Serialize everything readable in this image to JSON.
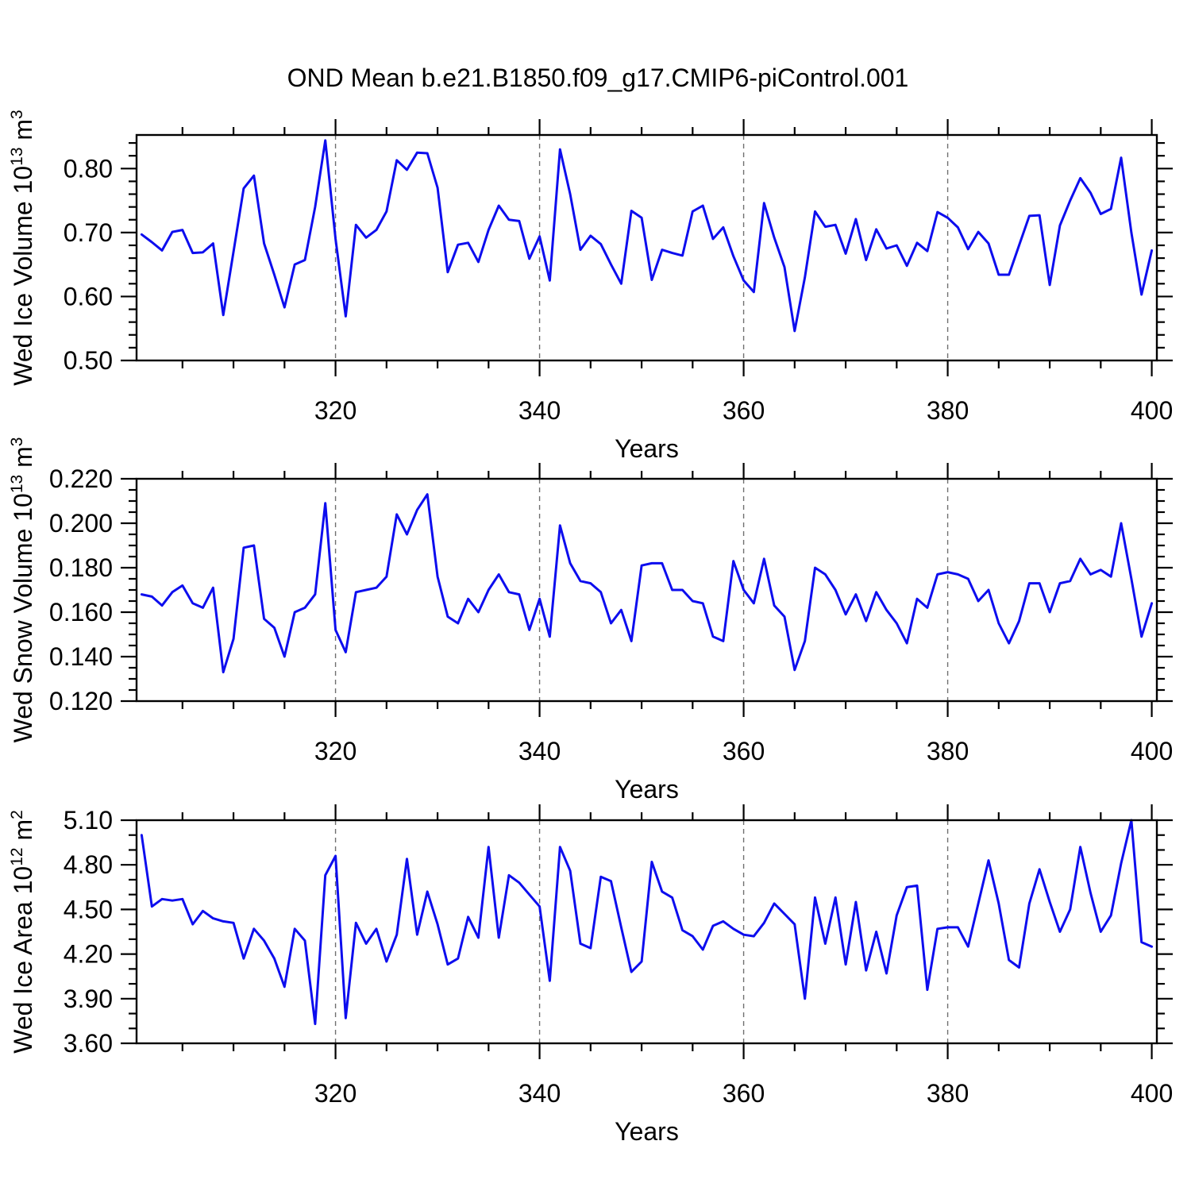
{
  "title": "OND Mean b.e21.B1850.f09_g17.CMIP6-piControl.001",
  "style": {
    "line_color": "#0d0dee",
    "grid_color": "#707070",
    "frame_color": "#000000",
    "background": "#ffffff"
  },
  "chart_data": [
    {
      "id": "wed-ice-volume",
      "type": "line",
      "xlabel": "Years",
      "ylabel": [
        [
          "Wed Ice Volume 10",
          false
        ],
        [
          "13",
          true
        ],
        [
          " m",
          false
        ],
        [
          "3",
          true
        ]
      ],
      "xlim": [
        300.5,
        400.5
      ],
      "ylim": [
        0.5,
        0.8525
      ],
      "xticks": [
        320,
        340,
        360,
        380,
        400
      ],
      "xtick_labels": [
        "320",
        "340",
        "360",
        "380",
        "400"
      ],
      "x_minor_start": 305,
      "x_minor_end": 400,
      "x_minor_step": 5,
      "yticks": [
        0.5,
        0.6,
        0.7,
        0.8
      ],
      "ytick_labels": [
        "0.50",
        "0.60",
        "0.70",
        "0.80"
      ],
      "y_minor_step": 0.02,
      "grid_x": [
        320,
        340,
        360,
        380
      ],
      "x_years": {
        "from": 301,
        "to": 400,
        "step": 1
      },
      "values": [
        0.697,
        0.685,
        0.672,
        0.701,
        0.704,
        0.668,
        0.669,
        0.683,
        0.571,
        0.67,
        0.769,
        0.789,
        0.683,
        0.634,
        0.583,
        0.65,
        0.657,
        0.74,
        0.844,
        0.69,
        0.569,
        0.712,
        0.692,
        0.704,
        0.733,
        0.813,
        0.798,
        0.825,
        0.824,
        0.77,
        0.638,
        0.681,
        0.684,
        0.654,
        0.704,
        0.742,
        0.72,
        0.718,
        0.659,
        0.694,
        0.625,
        0.83,
        0.76,
        0.673,
        0.695,
        0.682,
        0.65,
        0.62,
        0.734,
        0.723,
        0.626,
        0.673,
        0.668,
        0.664,
        0.733,
        0.742,
        0.69,
        0.708,
        0.663,
        0.625,
        0.607,
        0.746,
        0.692,
        0.646,
        0.546,
        0.63,
        0.733,
        0.709,
        0.712,
        0.667,
        0.721,
        0.657,
        0.705,
        0.675,
        0.68,
        0.648,
        0.684,
        0.671,
        0.732,
        0.723,
        0.708,
        0.674,
        0.701,
        0.683,
        0.634,
        0.634,
        0.68,
        0.726,
        0.727,
        0.618,
        0.711,
        0.75,
        0.785,
        0.762,
        0.729,
        0.737,
        0.817,
        0.7,
        0.603,
        0.672
      ]
    },
    {
      "id": "wed-snow-volume",
      "type": "line",
      "xlabel": "Years",
      "ylabel": [
        [
          "Wed Snow Volume 10",
          false
        ],
        [
          "13",
          true
        ],
        [
          " m",
          false
        ],
        [
          "3",
          true
        ]
      ],
      "xlim": [
        300.5,
        400.5
      ],
      "ylim": [
        0.12,
        0.22
      ],
      "xticks": [
        320,
        340,
        360,
        380,
        400
      ],
      "xtick_labels": [
        "320",
        "340",
        "360",
        "380",
        "400"
      ],
      "x_minor_start": 305,
      "x_minor_end": 400,
      "x_minor_step": 5,
      "yticks": [
        0.12,
        0.14,
        0.16,
        0.18,
        0.2,
        0.22
      ],
      "ytick_labels": [
        "0.120",
        "0.140",
        "0.160",
        "0.180",
        "0.200",
        "0.220"
      ],
      "y_minor_step": 0.005,
      "grid_x": [
        320,
        340,
        360,
        380
      ],
      "x_years": {
        "from": 301,
        "to": 400,
        "step": 1
      },
      "values": [
        0.168,
        0.167,
        0.163,
        0.169,
        0.172,
        0.164,
        0.162,
        0.171,
        0.133,
        0.148,
        0.189,
        0.19,
        0.157,
        0.153,
        0.14,
        0.16,
        0.162,
        0.168,
        0.209,
        0.152,
        0.142,
        0.169,
        0.17,
        0.171,
        0.176,
        0.204,
        0.195,
        0.206,
        0.213,
        0.176,
        0.158,
        0.155,
        0.166,
        0.16,
        0.17,
        0.177,
        0.169,
        0.168,
        0.152,
        0.166,
        0.149,
        0.199,
        0.182,
        0.174,
        0.173,
        0.169,
        0.155,
        0.161,
        0.147,
        0.181,
        0.182,
        0.182,
        0.17,
        0.17,
        0.165,
        0.164,
        0.149,
        0.147,
        0.183,
        0.17,
        0.164,
        0.184,
        0.163,
        0.158,
        0.134,
        0.147,
        0.18,
        0.177,
        0.17,
        0.159,
        0.168,
        0.156,
        0.169,
        0.161,
        0.155,
        0.146,
        0.166,
        0.162,
        0.177,
        0.178,
        0.177,
        0.175,
        0.165,
        0.17,
        0.155,
        0.146,
        0.156,
        0.173,
        0.173,
        0.16,
        0.173,
        0.174,
        0.184,
        0.177,
        0.179,
        0.176,
        0.2,
        0.175,
        0.149,
        0.164
      ]
    },
    {
      "id": "wed-ice-area",
      "type": "line",
      "xlabel": "Years",
      "ylabel": [
        [
          "Wed Ice Area 10",
          false
        ],
        [
          "12",
          true
        ],
        [
          " m",
          false
        ],
        [
          "2",
          true
        ]
      ],
      "xlim": [
        300.5,
        400.5
      ],
      "ylim": [
        3.6,
        5.1
      ],
      "xticks": [
        320,
        340,
        360,
        380,
        400
      ],
      "xtick_labels": [
        "320",
        "340",
        "360",
        "380",
        "400"
      ],
      "x_minor_start": 305,
      "x_minor_end": 400,
      "x_minor_step": 5,
      "yticks": [
        3.6,
        3.9,
        4.2,
        4.5,
        4.8,
        5.1
      ],
      "ytick_labels": [
        "3.60",
        "3.90",
        "4.20",
        "4.50",
        "4.80",
        "5.10"
      ],
      "y_minor_step": 0.1,
      "grid_x": [
        320,
        340,
        360,
        380
      ],
      "x_years": {
        "from": 301,
        "to": 400,
        "step": 1
      },
      "values": [
        5.0,
        4.52,
        4.57,
        4.56,
        4.57,
        4.4,
        4.49,
        4.44,
        4.42,
        4.41,
        4.17,
        4.37,
        4.29,
        4.17,
        3.98,
        4.37,
        4.29,
        3.73,
        4.73,
        4.86,
        3.77,
        4.41,
        4.27,
        4.37,
        4.15,
        4.33,
        4.84,
        4.33,
        4.62,
        4.4,
        4.13,
        4.17,
        4.45,
        4.31,
        4.92,
        4.31,
        4.73,
        4.68,
        4.6,
        4.52,
        4.02,
        4.92,
        4.76,
        4.27,
        4.24,
        4.72,
        4.69,
        4.38,
        4.08,
        4.15,
        4.82,
        4.62,
        4.58,
        4.36,
        4.32,
        4.23,
        4.39,
        4.42,
        4.37,
        4.33,
        4.32,
        4.41,
        4.54,
        4.47,
        4.4,
        3.9,
        4.58,
        4.27,
        4.58,
        4.13,
        4.55,
        4.09,
        4.35,
        4.07,
        4.46,
        4.65,
        4.66,
        3.96,
        4.37,
        4.38,
        4.38,
        4.25,
        4.54,
        4.83,
        4.54,
        4.16,
        4.11,
        4.54,
        4.77,
        4.55,
        4.35,
        4.5,
        4.92,
        4.61,
        4.35,
        4.46,
        4.81,
        5.1,
        4.28,
        4.25
      ]
    }
  ]
}
